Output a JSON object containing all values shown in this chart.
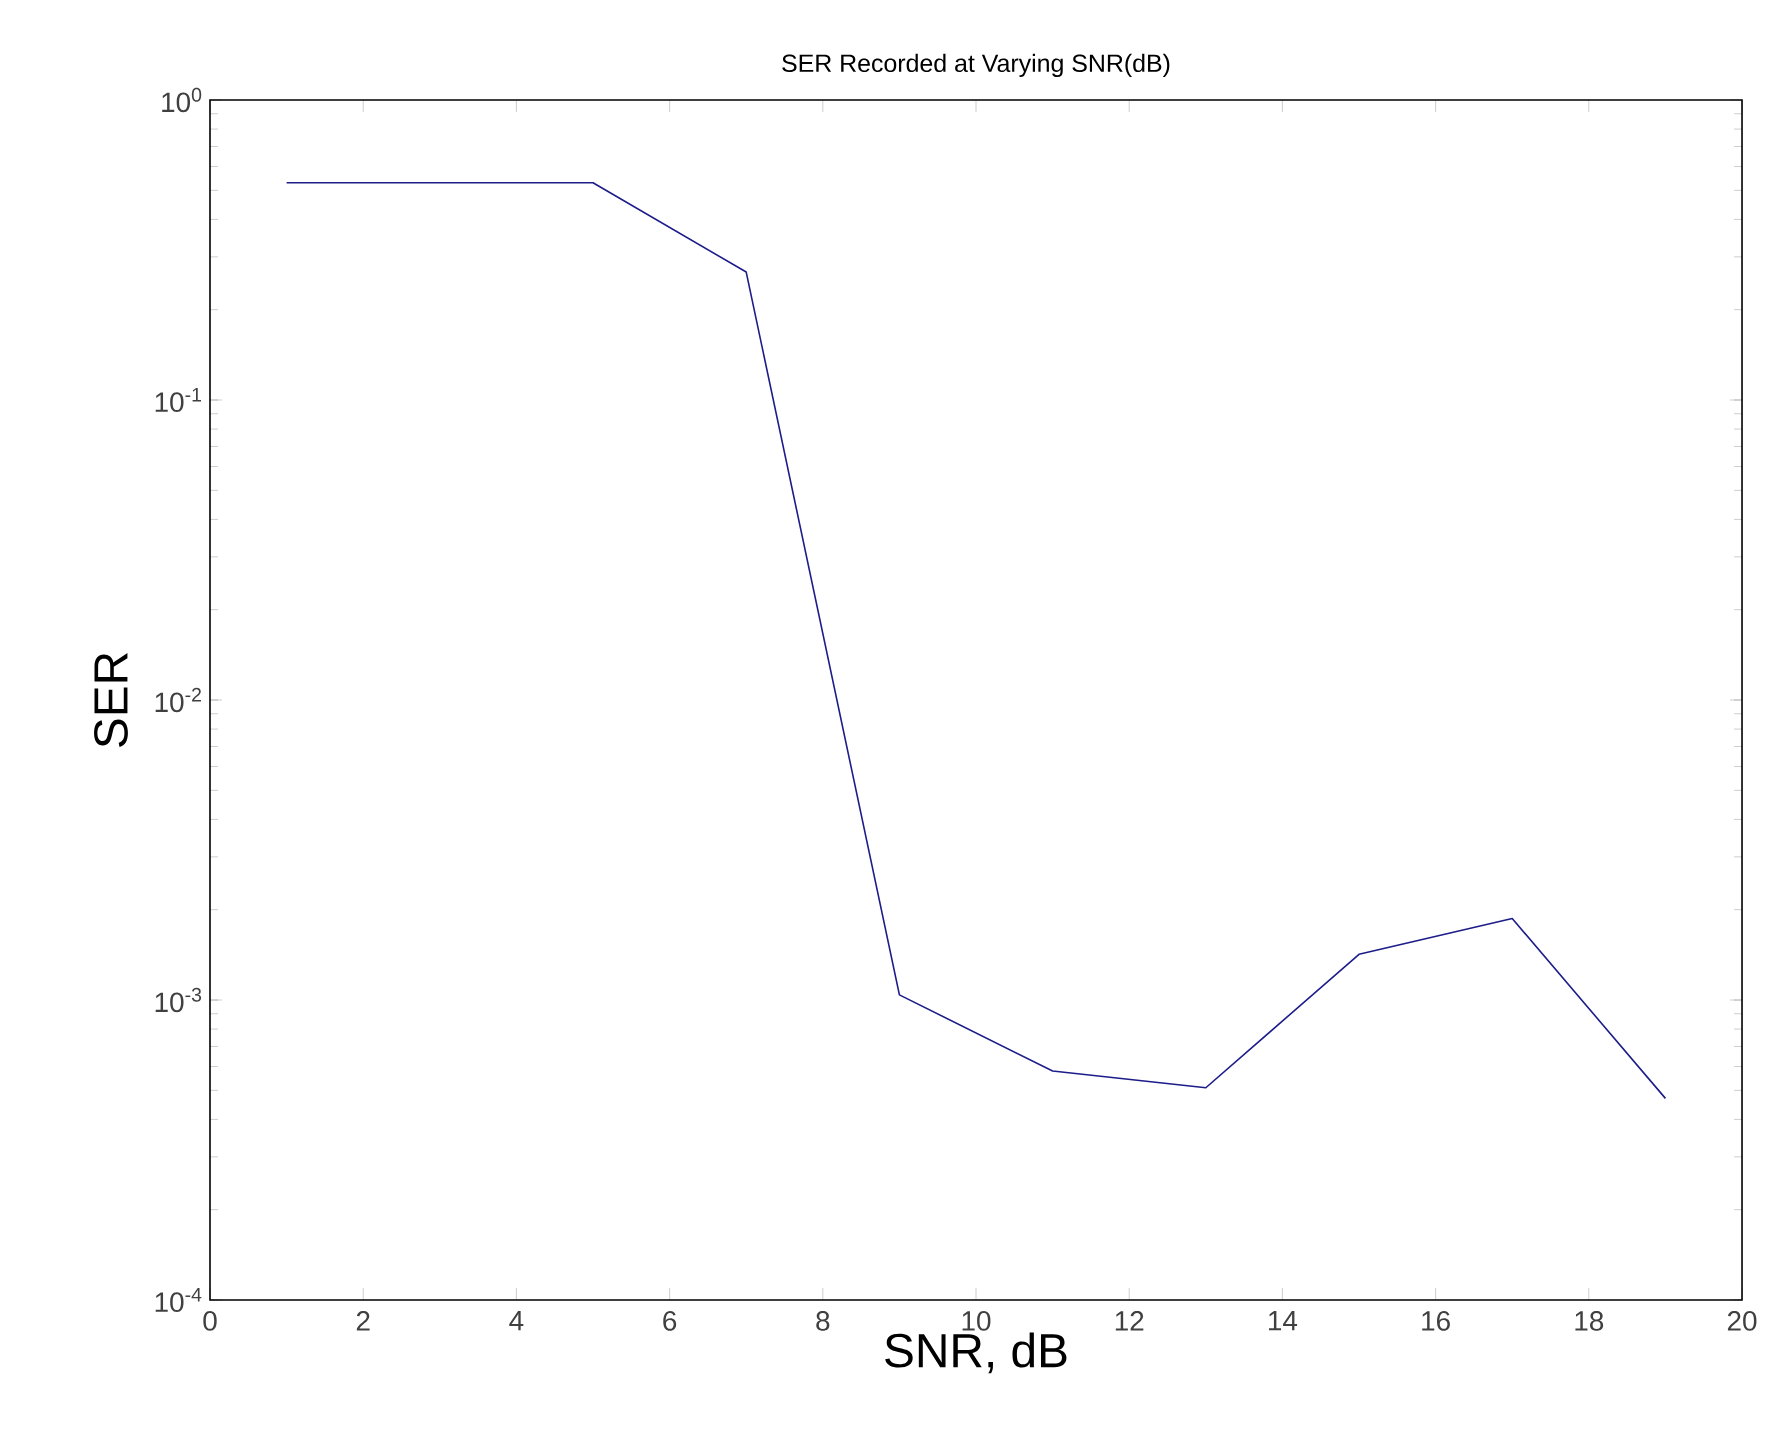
{
  "chart_data": {
    "type": "line",
    "title": "SER Recorded at Varying SNR(dB)",
    "xlabel": "SNR, dB",
    "ylabel": "SER",
    "x": [
      1,
      3,
      5,
      7,
      9,
      11,
      13,
      15,
      17,
      19
    ],
    "series": [
      {
        "color": "#1c1c8a",
        "values": [
          0.53,
          0.53,
          0.53,
          0.267,
          0.00104,
          0.00058,
          0.00051,
          0.00142,
          0.00187,
          0.00047
        ]
      }
    ],
    "log": "y",
    "xlim": [
      0,
      20
    ],
    "ylim": [
      0.0001,
      1
    ],
    "xticks": [
      0,
      2,
      4,
      6,
      8,
      10,
      12,
      14,
      16,
      18,
      20
    ],
    "yticks": [
      {
        "value": 0.0001,
        "label": "10$^{-4}$"
      },
      {
        "value": 0.001,
        "label": "10$^{-3}$"
      },
      {
        "value": 0.01,
        "label": "10$^{-2}$"
      },
      {
        "value": 0.1,
        "label": "10$^{-1}$"
      },
      {
        "value": 1,
        "label": "10$^{0}$"
      }
    ],
    "grid": false,
    "line_style": "solid"
  }
}
